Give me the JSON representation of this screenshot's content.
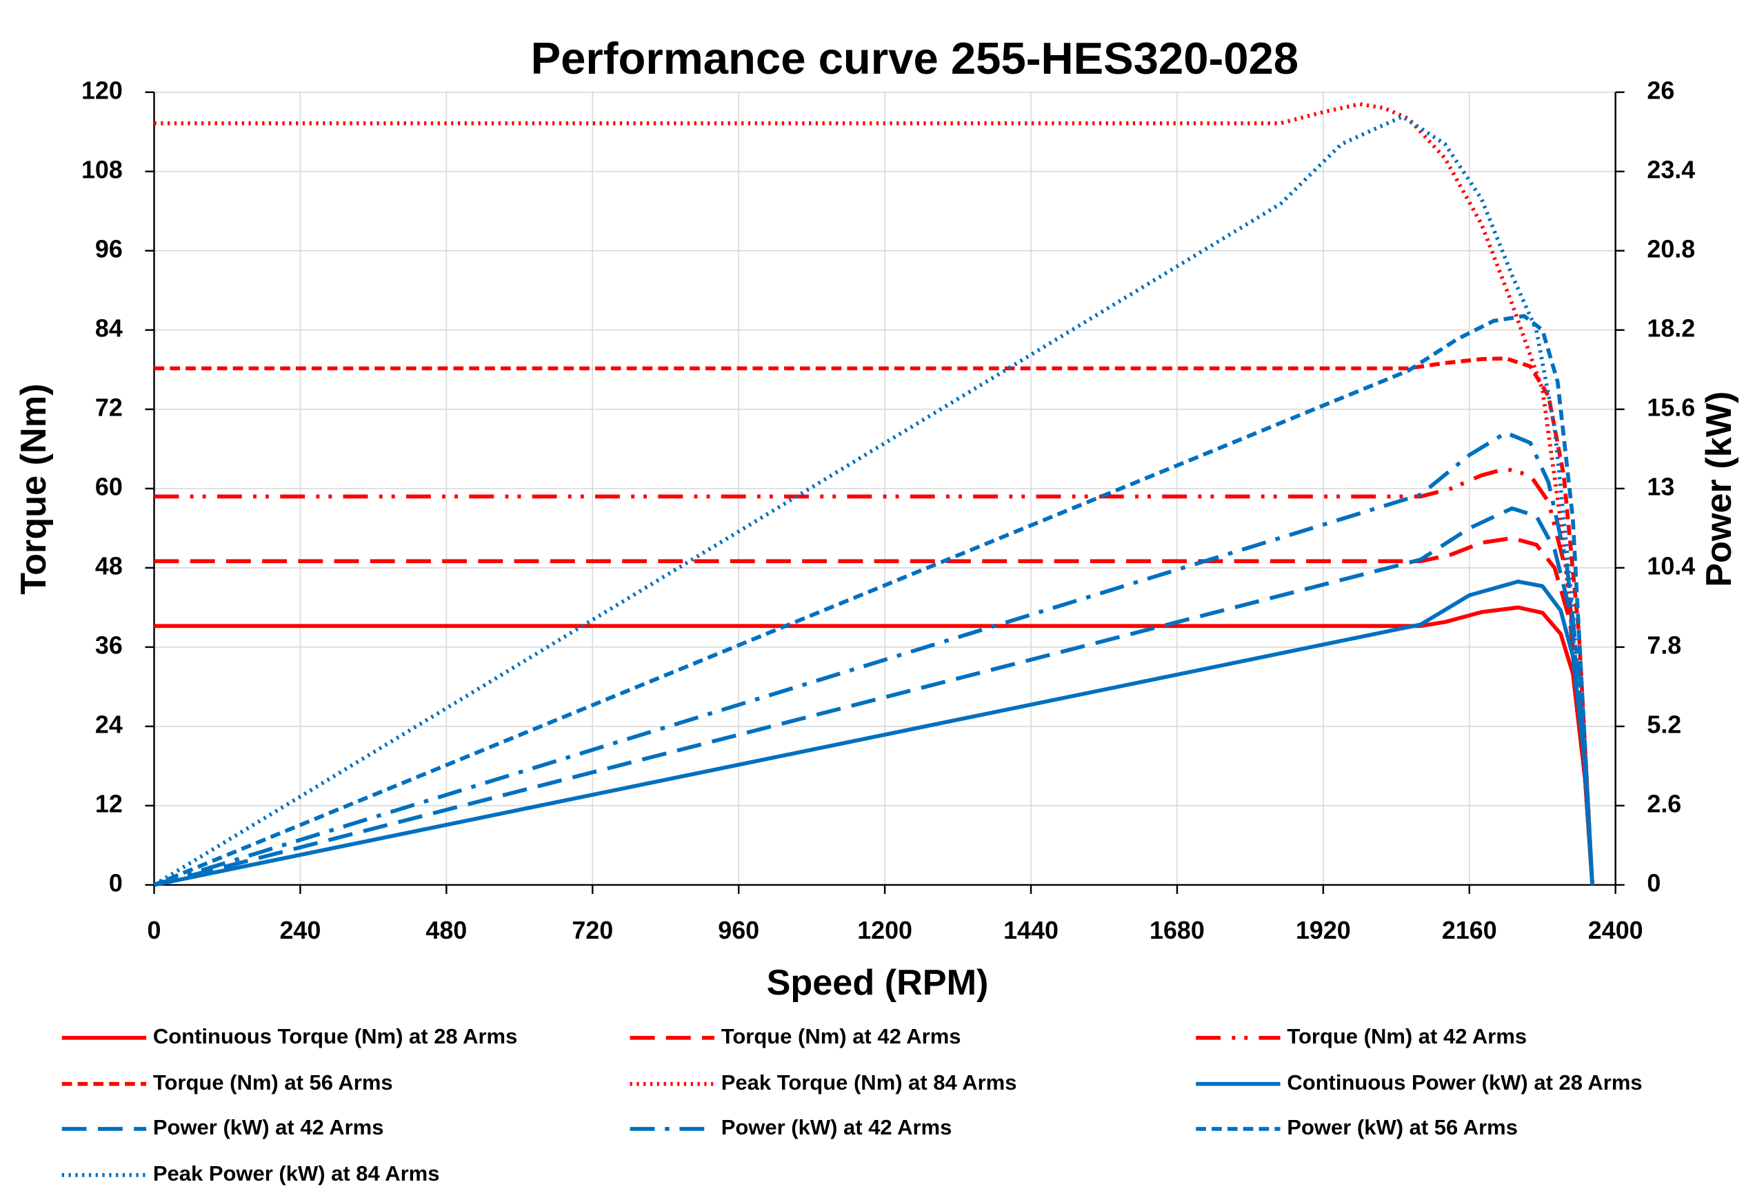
{
  "chart_data": {
    "type": "line",
    "title": "Performance curve 255-HES320-028",
    "x_label": "Speed (RPM)",
    "y_label": "Torque (Nm)",
    "y2_label": "Power (kW)",
    "xlim": [
      0,
      2400
    ],
    "xticks": [
      0,
      240,
      480,
      720,
      960,
      1200,
      1440,
      1680,
      1920,
      2160,
      2400
    ],
    "ylim": [
      0,
      120
    ],
    "yticks": [
      0,
      12,
      24,
      36,
      48,
      60,
      72,
      84,
      96,
      108,
      120
    ],
    "y2lim": [
      0,
      26
    ],
    "y2ticks": [
      0,
      2.6,
      5.2,
      7.8,
      10.4,
      13,
      15.6,
      18.2,
      20.8,
      23.4,
      26
    ],
    "grid": true,
    "series": [
      {
        "name": "Continuous Torque (Nm) at 28 Arms",
        "color": "#ff0000",
        "style": "solid",
        "x": [
          0,
          2080,
          2120,
          2180,
          2240,
          2280,
          2310,
          2330,
          2350,
          2362
        ],
        "values": [
          39.2,
          39.2,
          39.8,
          41.3,
          42,
          41.2,
          38,
          32,
          16,
          0
        ]
      },
      {
        "name": "Torque (Nm) at 42 Arms",
        "color": "#ff0000",
        "style": "long-dash",
        "x": [
          0,
          2080,
          2130,
          2180,
          2230,
          2270,
          2300,
          2325,
          2345,
          2362
        ],
        "values": [
          49,
          49,
          50,
          51.8,
          52.5,
          51.5,
          48,
          40,
          24,
          0
        ]
      },
      {
        "name": "Torque (Nm) at 42 Arms",
        "color": "#ff0000",
        "style": "long-dash-dot-dot",
        "x": [
          0,
          2080,
          2130,
          2180,
          2220,
          2260,
          2290,
          2320,
          2342,
          2362
        ],
        "values": [
          58.8,
          58.8,
          60,
          62,
          63,
          62,
          58,
          47,
          28,
          0
        ]
      },
      {
        "name": "Torque (Nm) at 56 Arms",
        "color": "#ff0000",
        "style": "short-dash",
        "x": [
          0,
          2060,
          2120,
          2180,
          2220,
          2260,
          2290,
          2315,
          2340,
          2362
        ],
        "values": [
          78.2,
          78.2,
          79,
          79.6,
          79.7,
          78.5,
          74,
          62,
          38,
          0
        ]
      },
      {
        "name": "Peak Torque (Nm) at 84 Arms",
        "color": "#ff0000",
        "style": "dot",
        "x": [
          0,
          1850,
          1920,
          1980,
          2020,
          2060,
          2120,
          2180,
          2230,
          2280,
          2310,
          2340,
          2362
        ],
        "values": [
          115.3,
          115.3,
          117,
          118.2,
          117.6,
          116,
          110,
          100,
          88,
          75,
          55,
          30,
          0
        ]
      },
      {
        "name": "Continuous Power (kW) at 28 Arms",
        "color": "#0070c0",
        "style": "solid",
        "axis": "y2",
        "x": [
          0,
          2080,
          2160,
          2240,
          2280,
          2310,
          2330,
          2350,
          2362
        ],
        "values": [
          0,
          8.54,
          9.5,
          9.95,
          9.8,
          9.0,
          7.5,
          4,
          0
        ]
      },
      {
        "name": "Power (kW) at 42 Arms",
        "color": "#0070c0",
        "style": "long-dash",
        "axis": "y2",
        "x": [
          0,
          2080,
          2160,
          2230,
          2270,
          2300,
          2325,
          2345,
          2362
        ],
        "values": [
          0,
          10.67,
          11.7,
          12.35,
          12.1,
          11,
          9,
          5.5,
          0
        ]
      },
      {
        "name": "Power (kW) at 42 Arms",
        "color": "#0070c0",
        "style": "long-dash-dot",
        "axis": "y2",
        "x": [
          0,
          2080,
          2160,
          2220,
          2260,
          2290,
          2320,
          2342,
          2362
        ],
        "values": [
          0,
          12.8,
          14.1,
          14.83,
          14.5,
          13.2,
          10.5,
          6.5,
          0
        ]
      },
      {
        "name": "Power (kW) at 56 Arms",
        "color": "#0070c0",
        "style": "short-dash",
        "axis": "y2",
        "x": [
          0,
          2060,
          2140,
          2200,
          2250,
          2280,
          2305,
          2330,
          2362
        ],
        "values": [
          0,
          16.87,
          17.9,
          18.5,
          18.66,
          18.2,
          16.5,
          12,
          0
        ]
      },
      {
        "name": "Peak Power (kW) at 84 Arms",
        "color": "#0070c0",
        "style": "dot",
        "axis": "y2",
        "x": [
          0,
          1850,
          1950,
          2050,
          2120,
          2180,
          2230,
          2270,
          2300,
          2330,
          2362
        ],
        "values": [
          0,
          22.34,
          24.3,
          25.2,
          24.3,
          22.5,
          20,
          18.2,
          15,
          9,
          0
        ]
      }
    ]
  }
}
